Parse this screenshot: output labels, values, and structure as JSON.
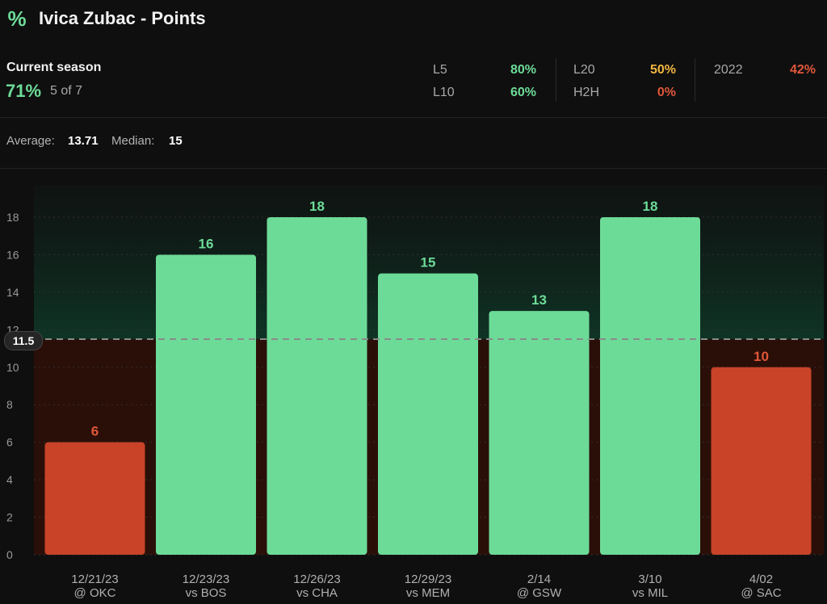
{
  "header": {
    "title": "Ivica Zubac - Points",
    "icon": "percent-icon"
  },
  "season": {
    "label": "Current season",
    "pct": "71%",
    "count": "5 of 7"
  },
  "stats": {
    "l5": {
      "label": "L5",
      "value": "80%",
      "color": "#6ddb98"
    },
    "l10": {
      "label": "L10",
      "value": "60%",
      "color": "#6ddb98"
    },
    "l20": {
      "label": "L20",
      "value": "50%",
      "color": "#f2b640"
    },
    "h2h": {
      "label": "H2H",
      "value": "0%",
      "color": "#e0573a"
    },
    "y2022": {
      "label": "2022",
      "value": "42%",
      "color": "#e0573a"
    }
  },
  "summary": {
    "average_label": "Average:",
    "average": "13.71",
    "median_label": "Median:",
    "median": "15"
  },
  "colors": {
    "over": "#6ddb98",
    "under": "#c84328",
    "line": "#8a8a8a"
  },
  "chart_data": {
    "type": "bar",
    "ylim": [
      0,
      18
    ],
    "yticks": [
      0,
      2,
      4,
      6,
      8,
      10,
      12,
      14,
      16,
      18
    ],
    "line": 11.5,
    "line_label": "11.5",
    "categories": [
      {
        "date": "12/21/23",
        "opp": "@ OKC"
      },
      {
        "date": "12/23/23",
        "opp": "vs BOS"
      },
      {
        "date": "12/26/23",
        "opp": "vs CHA"
      },
      {
        "date": "12/29/23",
        "opp": "vs MEM"
      },
      {
        "date": "2/14",
        "opp": "@ GSW"
      },
      {
        "date": "3/10",
        "opp": "vs MIL"
      },
      {
        "date": "4/02",
        "opp": "@ SAC"
      }
    ],
    "values": [
      6,
      16,
      18,
      15,
      13,
      18,
      10
    ],
    "grid": true
  }
}
